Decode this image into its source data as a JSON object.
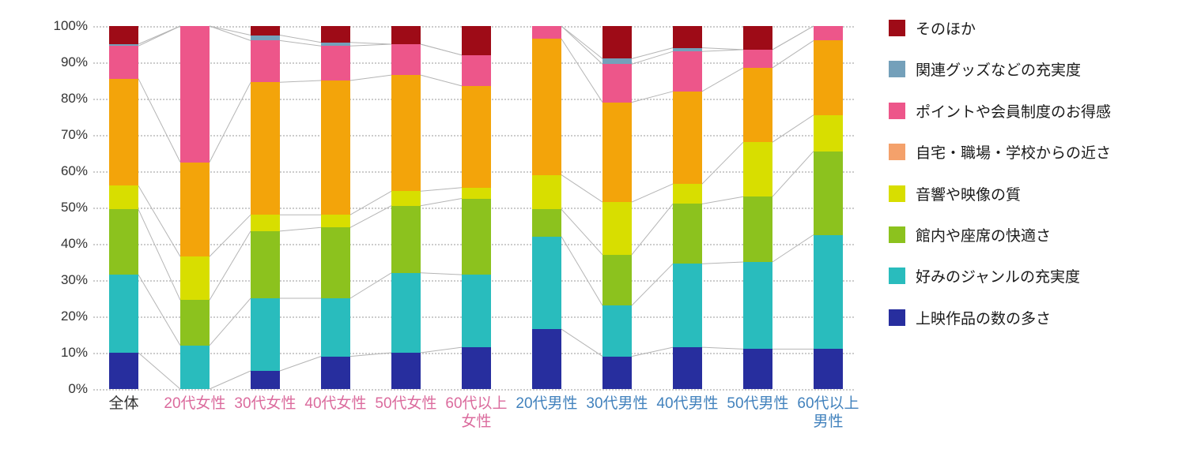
{
  "chart_data": {
    "type": "bar",
    "subtype": "stacked-100-percent-vertical",
    "title": "",
    "xlabel": "",
    "ylabel": "",
    "ylim": [
      0,
      100
    ],
    "grid": "horizontal-dotted",
    "legend_position": "right",
    "y_ticks": [
      "0%",
      "10%",
      "20%",
      "30%",
      "40%",
      "50%",
      "60%",
      "70%",
      "80%",
      "90%",
      "100%"
    ],
    "categories": [
      {
        "label": "全体",
        "color": "#333333",
        "group": "all"
      },
      {
        "label": "20代女性",
        "color": "#DB6B9D",
        "group": "female"
      },
      {
        "label": "30代女性",
        "color": "#DB6B9D",
        "group": "female"
      },
      {
        "label": "40代女性",
        "color": "#DB6B9D",
        "group": "female"
      },
      {
        "label": "50代女性",
        "color": "#DB6B9D",
        "group": "female"
      },
      {
        "label": "60代以上\n女性",
        "color": "#DB6B9D",
        "group": "female"
      },
      {
        "label": "20代男性",
        "color": "#4282BD",
        "group": "male"
      },
      {
        "label": "30代男性",
        "color": "#4282BD",
        "group": "male"
      },
      {
        "label": "40代男性",
        "color": "#4282BD",
        "group": "male"
      },
      {
        "label": "50代男性",
        "color": "#4282BD",
        "group": "male"
      },
      {
        "label": "60代以上\n男性",
        "color": "#4282BD",
        "group": "male"
      }
    ],
    "series_bottom_to_top": [
      {
        "name": "上映作品の数の多さ",
        "color": "#272E9E",
        "swatch": "#272E9E",
        "values": [
          10.0,
          0.0,
          5.0,
          9.0,
          10.0,
          11.5,
          16.5,
          9.0,
          11.5,
          11.0,
          11.0
        ]
      },
      {
        "name": "好みのジャンルの充実度",
        "color": "#29BCBD",
        "swatch": "#29BCBD",
        "values": [
          21.5,
          12.0,
          20.0,
          16.0,
          22.0,
          20.0,
          25.5,
          14.0,
          23.0,
          24.0,
          31.5
        ]
      },
      {
        "name": "館内や座席の快適さ",
        "color": "#8CC21E",
        "swatch": "#8CC21E",
        "values": [
          18.0,
          12.5,
          18.5,
          19.5,
          18.5,
          21.0,
          7.5,
          14.0,
          16.5,
          18.0,
          23.0
        ]
      },
      {
        "name": "音響や映像の質",
        "color": "#D8DE00",
        "swatch": "#D8DE00",
        "values": [
          6.5,
          12.0,
          4.5,
          3.5,
          4.0,
          3.0,
          9.5,
          14.5,
          5.5,
          15.0,
          10.0
        ]
      },
      {
        "name": "自宅・職場・学校からの近さ",
        "color": "#F3A40A",
        "swatch": "#F4A16B",
        "values": [
          29.5,
          26.0,
          36.5,
          37.0,
          32.0,
          28.0,
          37.5,
          27.5,
          25.5,
          20.5,
          20.5
        ]
      },
      {
        "name": "ポイントや会員制度のお得感",
        "color": "#ED568A",
        "swatch": "#ED568A",
        "values": [
          9.0,
          37.5,
          11.5,
          9.5,
          8.5,
          8.5,
          3.5,
          10.5,
          11.0,
          5.0,
          4.0
        ]
      },
      {
        "name": "関連グッズなどの充実度",
        "color": "#74A0BA",
        "swatch": "#74A0BA",
        "values": [
          0.5,
          0.0,
          1.5,
          1.0,
          0.0,
          0.0,
          0.0,
          1.5,
          1.0,
          0.0,
          0.0
        ]
      },
      {
        "name": "そのほか",
        "color": "#9E0B17",
        "swatch": "#9E0B17",
        "values": [
          5.0,
          0.0,
          2.5,
          4.5,
          5.0,
          8.0,
          0.0,
          9.0,
          6.0,
          6.5,
          0.0
        ]
      }
    ],
    "legend_top_to_bottom": [
      "そのほか",
      "関連グッズなどの充実度",
      "ポイントや会員制度のお得感",
      "自宅・職場・学校からの近さ",
      "音響や映像の質",
      "館内や座席の快適さ",
      "好みのジャンルの充実度",
      "上映作品の数の多さ"
    ],
    "connector_line_color": "#b5b5b5",
    "connectors_between": "adjacent bars within female group and within male group only"
  }
}
